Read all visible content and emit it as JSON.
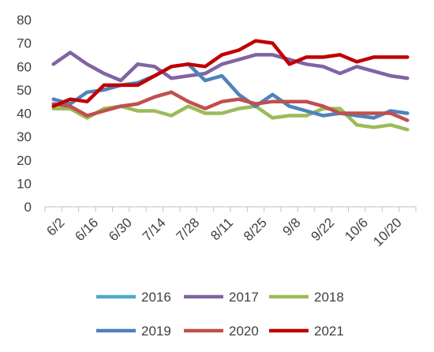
{
  "chart_data": {
    "type": "line",
    "title": "",
    "xlabel": "",
    "ylabel": "",
    "ylim": [
      0,
      80
    ],
    "y_ticks": [
      0,
      10,
      20,
      30,
      40,
      50,
      60,
      70,
      80
    ],
    "x": [
      "6/2",
      "6/9",
      "6/16",
      "6/23",
      "6/30",
      "7/7",
      "7/14",
      "7/21",
      "7/28",
      "8/4",
      "8/11",
      "8/18",
      "8/25",
      "9/1",
      "9/8",
      "9/15",
      "9/22",
      "9/29",
      "10/6",
      "10/13",
      "10/20",
      "10/27"
    ],
    "x_tick_labels": [
      "6/2",
      "6/16",
      "6/30",
      "7/14",
      "7/28",
      "8/11",
      "8/25",
      "9/8",
      "9/22",
      "10/6",
      "10/20"
    ],
    "grid": false,
    "legend_position": "bottom",
    "series": [
      {
        "name": "2016",
        "color": "#4BACC6",
        "values": [
          null,
          null,
          null,
          null,
          null,
          null,
          null,
          null,
          null,
          null,
          null,
          null,
          null,
          null,
          null,
          null,
          null,
          null,
          null,
          null,
          null,
          null
        ]
      },
      {
        "name": "2017",
        "color": "#8064A2",
        "values": [
          61,
          66,
          61,
          57,
          54,
          61,
          60,
          55,
          56,
          57,
          61,
          63,
          65,
          65,
          63,
          61,
          60,
          57,
          60,
          58,
          56,
          55
        ]
      },
      {
        "name": "2018",
        "color": "#9BBB59",
        "values": [
          42,
          42,
          38,
          42,
          43,
          41,
          41,
          39,
          43,
          40,
          40,
          42,
          43,
          38,
          39,
          39,
          42,
          42,
          35,
          34,
          35,
          33
        ]
      },
      {
        "name": "2019",
        "color": "#4F81BD",
        "values": [
          46,
          44,
          49,
          50,
          52,
          53,
          56,
          60,
          61,
          54,
          56,
          48,
          43,
          48,
          43,
          41,
          39,
          40,
          39,
          38,
          41,
          40
        ]
      },
      {
        "name": "2020",
        "color": "#C0504D",
        "values": [
          44,
          43,
          39,
          41,
          43,
          44,
          47,
          49,
          45,
          42,
          45,
          46,
          44,
          45,
          45,
          45,
          43,
          40,
          40,
          40,
          40,
          37
        ]
      },
      {
        "name": "2021",
        "color": "#C00000",
        "values": [
          43,
          46,
          45,
          52,
          52,
          52,
          56,
          60,
          61,
          60,
          65,
          67,
          71,
          70,
          61,
          64,
          64,
          65,
          62,
          64,
          64,
          64
        ]
      }
    ],
    "legend_rows": [
      [
        "2016",
        "2017",
        "2018"
      ],
      [
        "2019",
        "2020",
        "2021"
      ]
    ]
  }
}
